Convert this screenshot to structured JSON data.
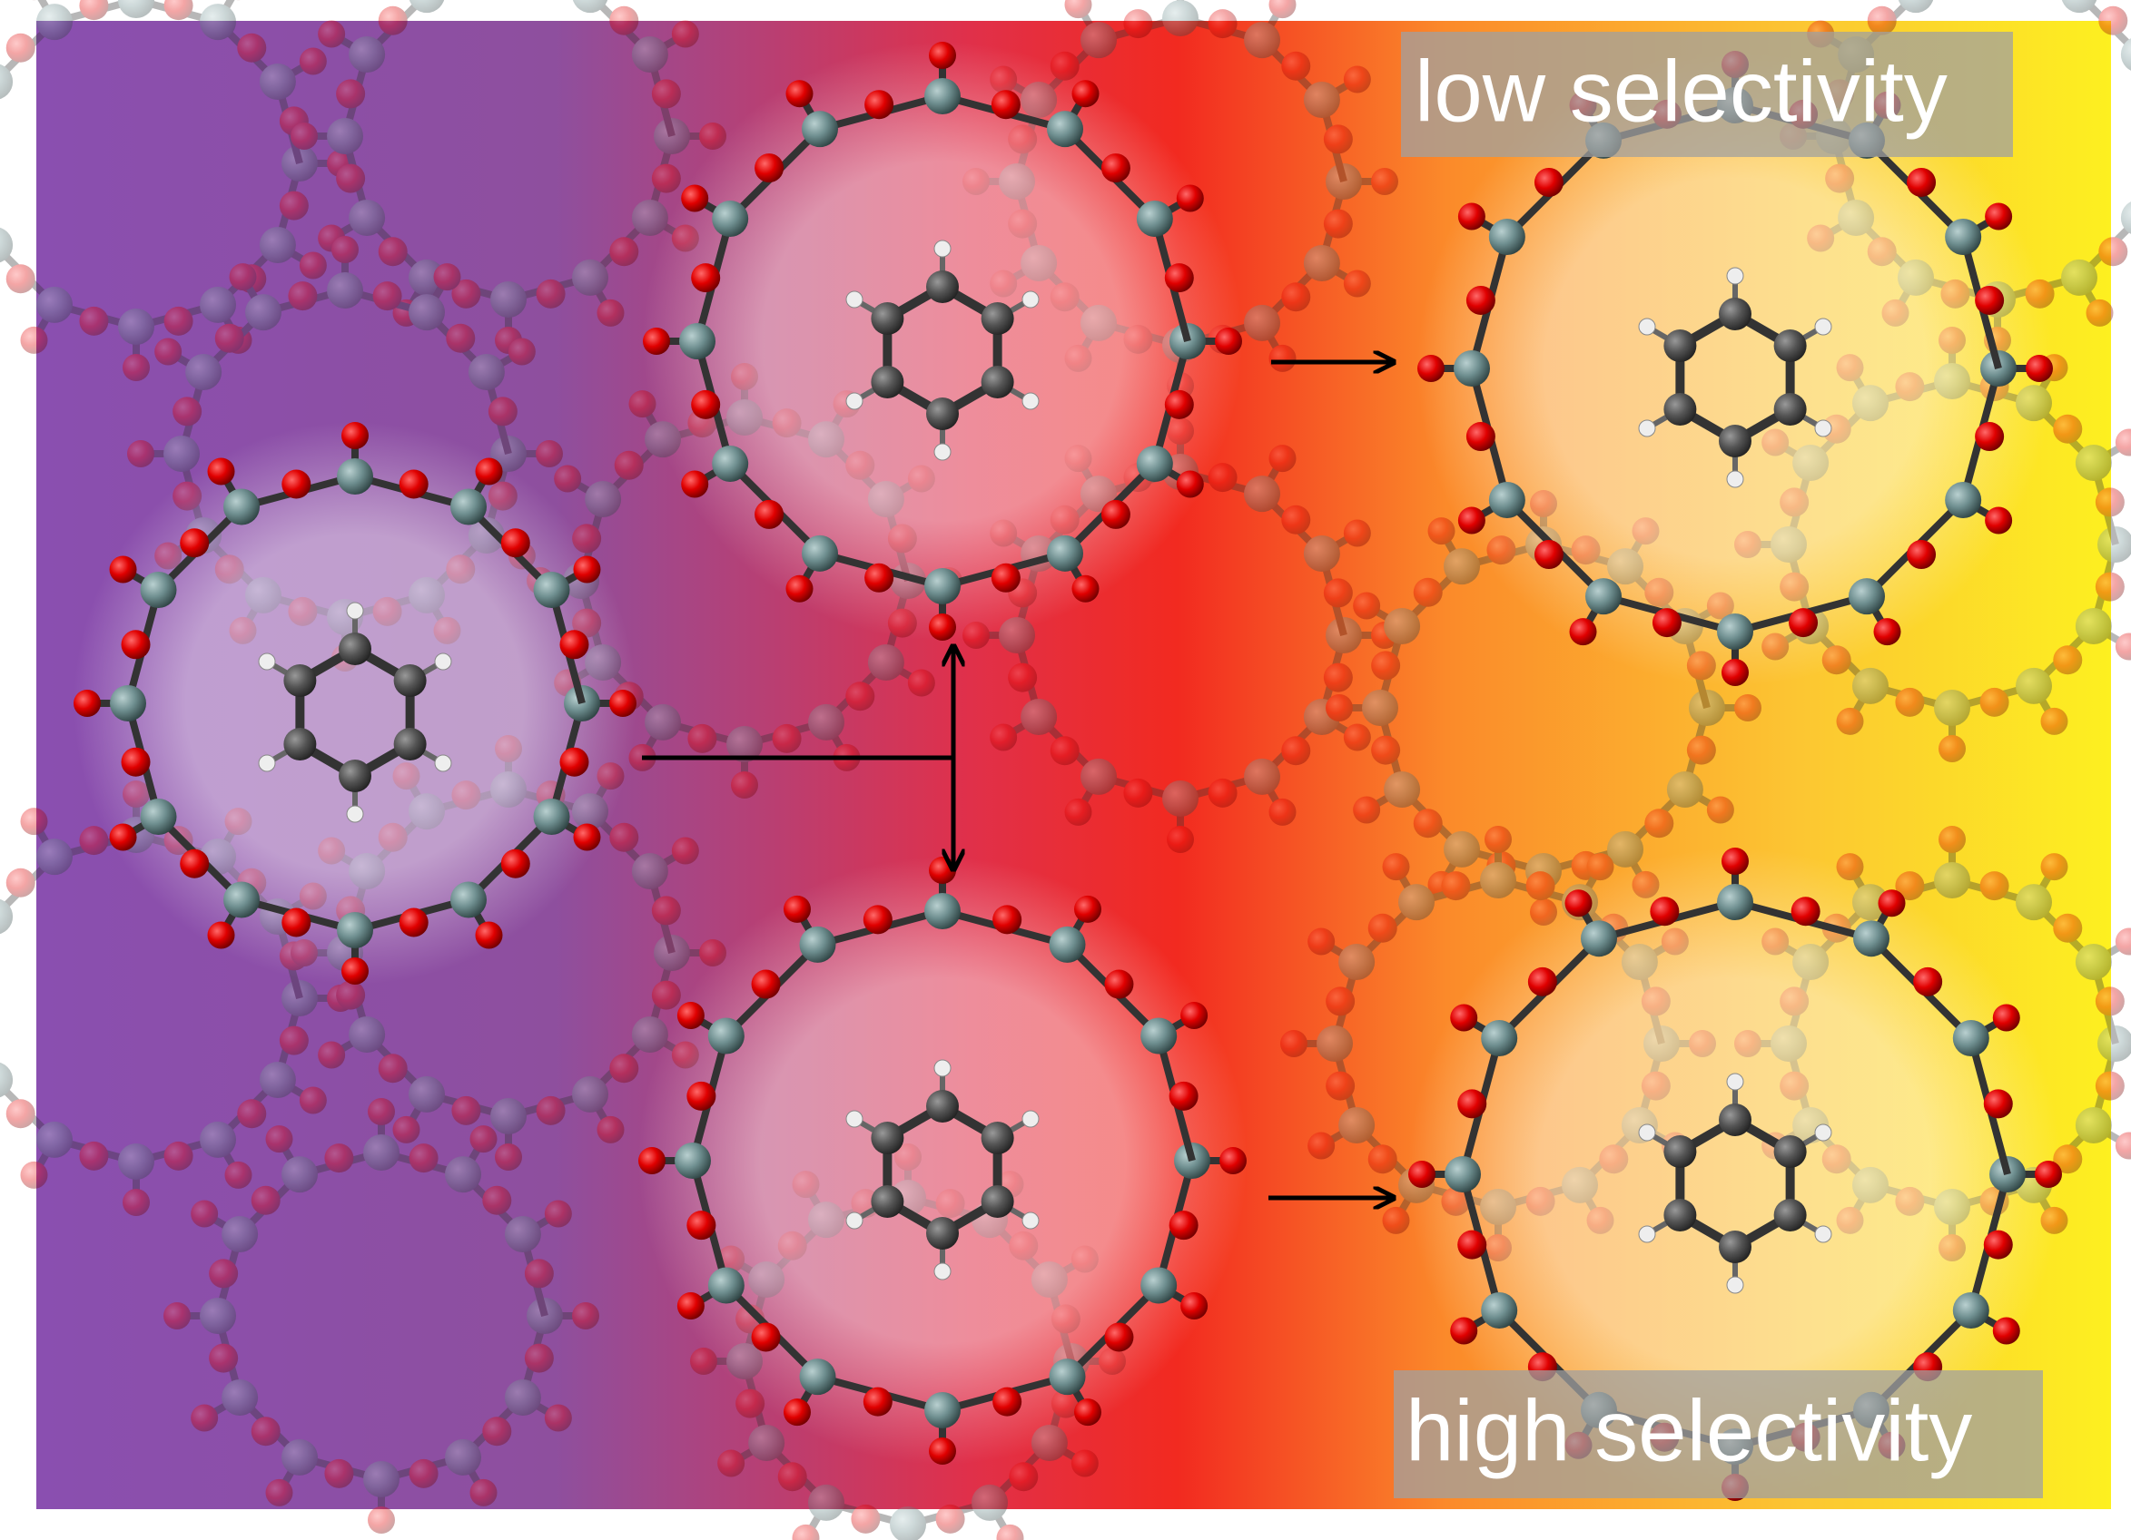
{
  "labels": {
    "top_right": "low selectivity",
    "bottom_right": "high selectivity"
  }
}
